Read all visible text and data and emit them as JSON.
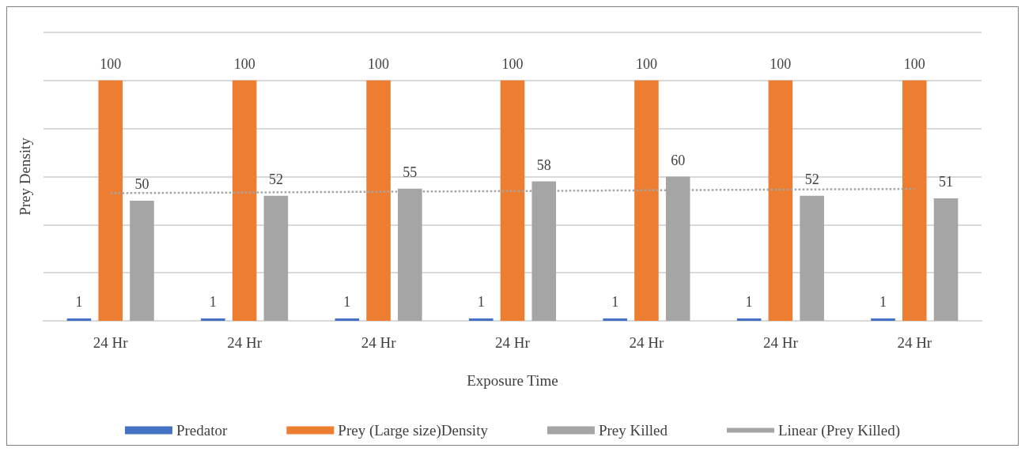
{
  "chart_data": {
    "type": "bar",
    "xlabel": "Exposure Time",
    "ylabel": "Prey Density",
    "categories": [
      "24 Hr",
      "24 Hr",
      "24 Hr",
      "24 Hr",
      "24 Hr",
      "24 Hr",
      "24 Hr"
    ],
    "series": [
      {
        "name": "Predator",
        "color": "#4472c4",
        "values": [
          1,
          1,
          1,
          1,
          1,
          1,
          1
        ],
        "value_labels": [
          "1",
          "1",
          "1",
          "1",
          "1",
          "1",
          "1"
        ]
      },
      {
        "name": "Prey (Large size)Density",
        "color": "#ed7d31",
        "values": [
          100,
          100,
          100,
          100,
          100,
          100,
          100
        ],
        "value_labels": [
          "100",
          "100",
          "100",
          "100",
          "100",
          "100",
          "100"
        ]
      },
      {
        "name": "Prey Killed",
        "color": "#a5a5a5",
        "values": [
          50,
          52,
          55,
          58,
          60,
          52,
          51
        ],
        "value_labels": [
          "50",
          "52",
          "55",
          "58",
          "60",
          "52",
          "51"
        ]
      },
      {
        "name": "Linear (Prey Killed)",
        "type": "line",
        "color": "#a5a5a5",
        "line_style": "dotted",
        "marker": "none",
        "values": [
          53.1,
          53.4,
          53.7,
          54.0,
          54.3,
          54.6,
          54.9
        ]
      }
    ],
    "ylim": [
      0,
      120
    ],
    "yticks": [
      {
        "value": 0,
        "label": null
      },
      {
        "value": 20,
        "label": null
      },
      {
        "value": 40,
        "label": null
      },
      {
        "value": 60,
        "label": null
      },
      {
        "value": 80,
        "label": null
      },
      {
        "value": 100,
        "label": null
      },
      {
        "value": 120,
        "label": null
      }
    ],
    "tick_labels": "x",
    "grid": "y",
    "legend": "bottom"
  }
}
